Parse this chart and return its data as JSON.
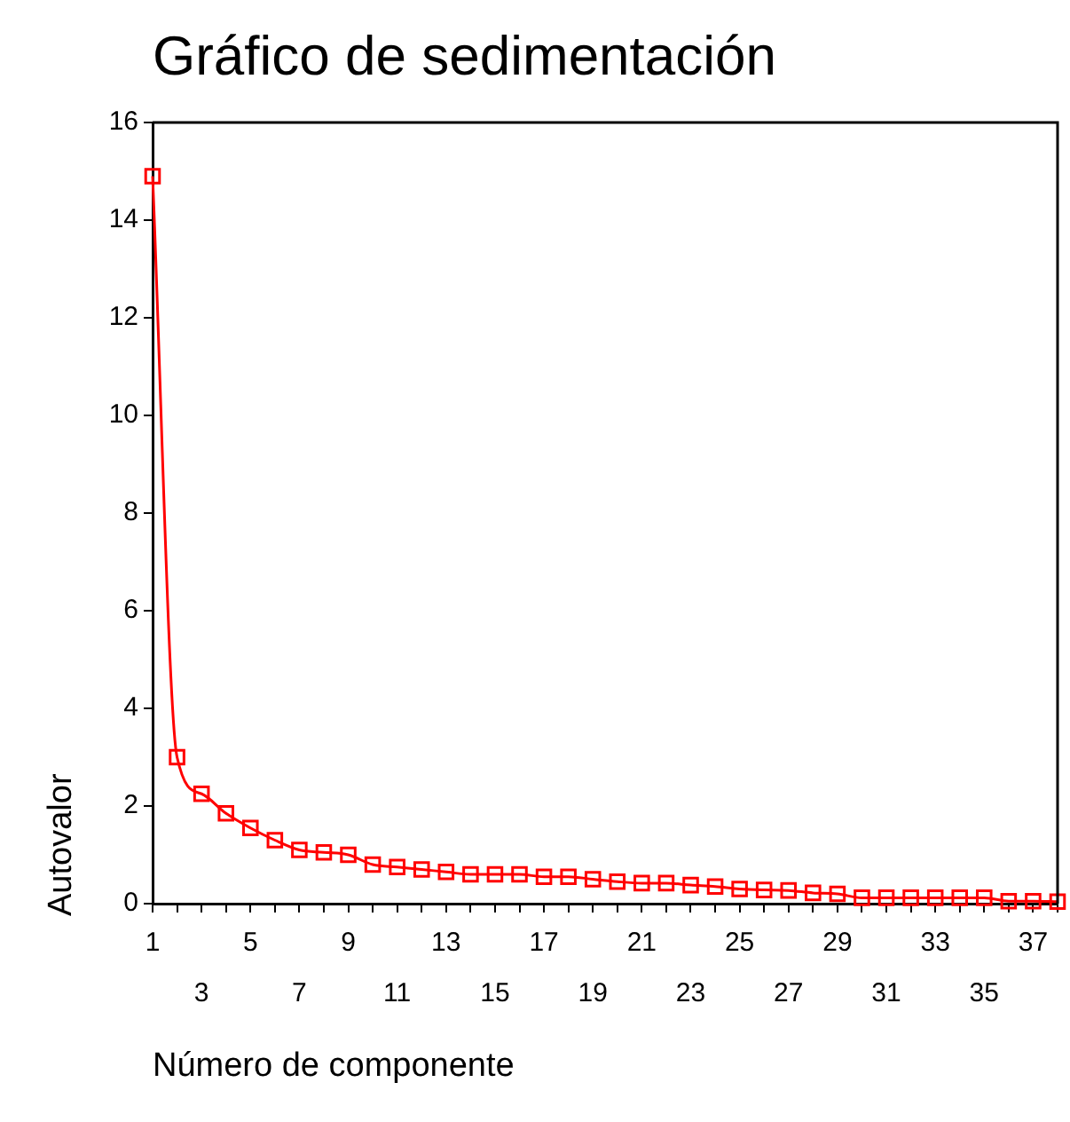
{
  "chart_data": {
    "type": "line",
    "title": "Gráfico de sedimentación",
    "xlabel": "Número de componente",
    "ylabel": "Autovalor",
    "categories": [
      "1",
      null,
      "3",
      null,
      "5",
      null,
      "7",
      null,
      "9",
      null,
      "11",
      null,
      "13",
      null,
      "15",
      null,
      "17",
      null,
      "19",
      null,
      "21",
      null,
      "23",
      null,
      "25",
      null,
      "27",
      null,
      "29",
      null,
      "31",
      null,
      "33",
      null,
      "35",
      null,
      "37",
      null
    ],
    "series": [
      {
        "color": "#ff0000",
        "values": [
          14.9,
          3.0,
          2.25,
          1.85,
          1.55,
          1.3,
          1.1,
          1.05,
          1.0,
          0.8,
          0.75,
          0.7,
          0.65,
          0.6,
          0.6,
          0.6,
          0.55,
          0.55,
          0.5,
          0.45,
          0.42,
          0.42,
          0.38,
          0.35,
          0.3,
          0.28,
          0.27,
          0.22,
          0.2,
          0.12,
          0.12,
          0.12,
          0.12,
          0.12,
          0.12,
          0.05,
          0.05,
          0.04
        ]
      }
    ],
    "ylim": [
      0,
      16
    ],
    "yticks": [
      0,
      2,
      4,
      6,
      8,
      10,
      12,
      14,
      16
    ],
    "marker": "square"
  }
}
